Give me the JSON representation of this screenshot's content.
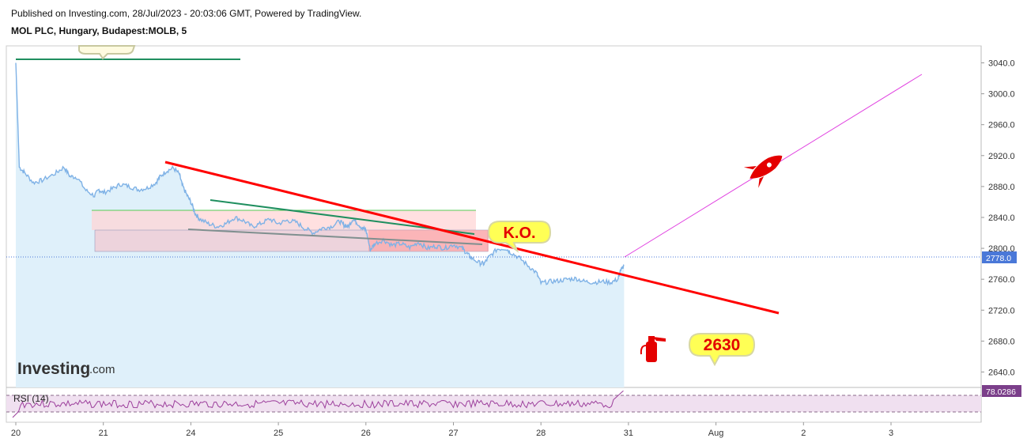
{
  "header": {
    "published": "Published on Investing.com, 28/Jul/2023 - 20:03:06 GMT, Powered by TradingView.",
    "symbol": "MOL PLC, Hungary, Budapest:MOLB, 5"
  },
  "watermark": {
    "main": "Investing",
    "sub": ".com"
  },
  "annotations": {
    "ko": "K.O.",
    "target": "2630",
    "rsi_label": "RSI (14)"
  },
  "colors": {
    "price_line": "#7fb2e6",
    "area_fill": "#dff0fa",
    "trend_red": "#ff0000",
    "projection": "#e040e0",
    "green_line": "#1f8f5f",
    "gray_line": "#7f8f8f",
    "rsi_line": "#9c3f9c",
    "price_tag": "#4a78d8",
    "rsi_tag": "#7b3f8a",
    "callout_fill": "#ffff55"
  },
  "chart_data": {
    "type": "line",
    "x_ticks": [
      "20",
      "21",
      "24",
      "25",
      "26",
      "27",
      "28",
      "31",
      "Aug",
      "2",
      "3"
    ],
    "y_ticks": [
      "3040.0",
      "3000.0",
      "2960.0",
      "2920.0",
      "2880.0",
      "2840.0",
      "2800.0",
      "2760.0",
      "2720.0",
      "2680.0",
      "2640.0"
    ],
    "ylim": [
      2620,
      3062
    ],
    "last_price": "2778.0",
    "series": [
      {
        "values": [
          [
            0,
            3040
          ],
          [
            0.04,
            2905
          ],
          [
            0.1,
            2898
          ],
          [
            0.2,
            2885
          ],
          [
            0.3,
            2888
          ],
          [
            0.45,
            2897
          ],
          [
            0.55,
            2905
          ],
          [
            0.62,
            2893
          ],
          [
            0.7,
            2892
          ],
          [
            0.8,
            2875
          ],
          [
            0.9,
            2868
          ],
          [
            0.95,
            2876
          ],
          [
            1.0,
            2872
          ],
          [
            1.1,
            2877
          ],
          [
            1.2,
            2883
          ],
          [
            1.3,
            2880
          ],
          [
            1.4,
            2876
          ],
          [
            1.5,
            2878
          ],
          [
            1.6,
            2885
          ],
          [
            1.65,
            2893
          ],
          [
            1.72,
            2900
          ],
          [
            1.8,
            2904
          ],
          [
            1.87,
            2896
          ],
          [
            1.9,
            2882
          ],
          [
            1.95,
            2870
          ],
          [
            2.0,
            2860
          ],
          [
            2.05,
            2845
          ],
          [
            2.1,
            2838
          ],
          [
            2.2,
            2832
          ],
          [
            2.3,
            2828
          ],
          [
            2.4,
            2832
          ],
          [
            2.5,
            2840
          ],
          [
            2.6,
            2836
          ],
          [
            2.7,
            2828
          ],
          [
            2.8,
            2832
          ],
          [
            2.9,
            2838
          ],
          [
            3.0,
            2832
          ],
          [
            3.1,
            2836
          ],
          [
            3.2,
            2834
          ],
          [
            3.3,
            2826
          ],
          [
            3.4,
            2820
          ],
          [
            3.5,
            2826
          ],
          [
            3.6,
            2828
          ],
          [
            3.7,
            2835
          ],
          [
            3.75,
            2830
          ],
          [
            3.8,
            2828
          ],
          [
            3.85,
            2838
          ],
          [
            3.9,
            2833
          ],
          [
            3.96,
            2826
          ],
          [
            4.0,
            2824
          ],
          [
            4.05,
            2798
          ],
          [
            4.1,
            2806
          ],
          [
            4.2,
            2811
          ],
          [
            4.3,
            2804
          ],
          [
            4.4,
            2806
          ],
          [
            4.5,
            2801
          ],
          [
            4.6,
            2808
          ],
          [
            4.7,
            2800
          ],
          [
            4.8,
            2803
          ],
          [
            4.9,
            2800
          ],
          [
            5.0,
            2805
          ],
          [
            5.1,
            2800
          ],
          [
            5.15,
            2794
          ],
          [
            5.2,
            2788
          ],
          [
            5.3,
            2781
          ],
          [
            5.35,
            2780
          ],
          [
            5.4,
            2788
          ],
          [
            5.5,
            2799
          ],
          [
            5.6,
            2800
          ],
          [
            5.65,
            2795
          ],
          [
            5.75,
            2788
          ],
          [
            5.85,
            2778
          ],
          [
            5.95,
            2768
          ],
          [
            6.0,
            2755
          ],
          [
            6.1,
            2757
          ],
          [
            6.2,
            2758
          ],
          [
            6.3,
            2760
          ],
          [
            6.4,
            2761
          ],
          [
            6.5,
            2757
          ],
          [
            6.6,
            2756
          ],
          [
            6.7,
            2757
          ],
          [
            6.8,
            2756
          ],
          [
            6.88,
            2760
          ],
          [
            6.9,
            2768
          ],
          [
            6.95,
            2778
          ]
        ]
      }
    ],
    "rsi": {
      "label": "RSI (14)",
      "value": "78.0286",
      "levels": [
        70,
        30
      ]
    }
  }
}
